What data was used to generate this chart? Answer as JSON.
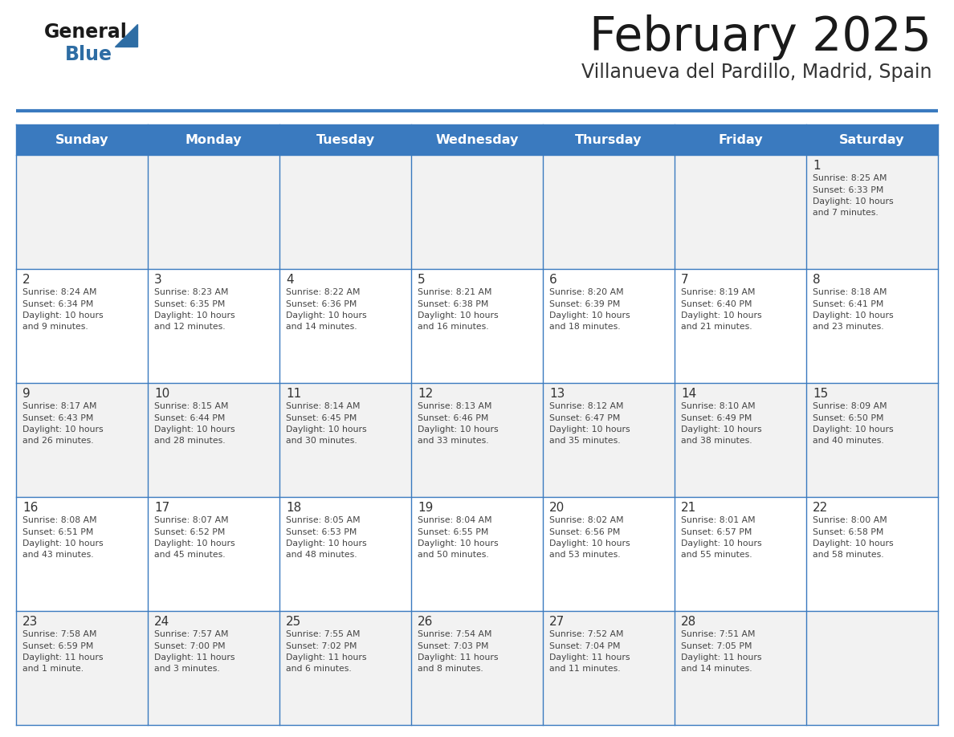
{
  "title": "February 2025",
  "subtitle": "Villanueva del Pardillo, Madrid, Spain",
  "days_of_week": [
    "Sunday",
    "Monday",
    "Tuesday",
    "Wednesday",
    "Thursday",
    "Friday",
    "Saturday"
  ],
  "header_bg": "#3a7abf",
  "header_text": "#ffffff",
  "row_bg_even": "#f2f2f2",
  "row_bg_odd": "#ffffff",
  "cell_text": "#444444",
  "day_num_color": "#333333",
  "border_color": "#3a7abf",
  "title_color": "#1a1a1a",
  "subtitle_color": "#333333",
  "general_color": "#1a1a1a",
  "blue_color": "#2e6da4",
  "triangle_color": "#2e6da4",
  "calendar_data": [
    [
      {
        "day": null
      },
      {
        "day": null
      },
      {
        "day": null
      },
      {
        "day": null
      },
      {
        "day": null
      },
      {
        "day": null
      },
      {
        "day": 1,
        "sunrise": "8:25 AM",
        "sunset": "6:33 PM",
        "daylight_line1": "10 hours",
        "daylight_line2": "and 7 minutes."
      }
    ],
    [
      {
        "day": 2,
        "sunrise": "8:24 AM",
        "sunset": "6:34 PM",
        "daylight_line1": "10 hours",
        "daylight_line2": "and 9 minutes."
      },
      {
        "day": 3,
        "sunrise": "8:23 AM",
        "sunset": "6:35 PM",
        "daylight_line1": "10 hours",
        "daylight_line2": "and 12 minutes."
      },
      {
        "day": 4,
        "sunrise": "8:22 AM",
        "sunset": "6:36 PM",
        "daylight_line1": "10 hours",
        "daylight_line2": "and 14 minutes."
      },
      {
        "day": 5,
        "sunrise": "8:21 AM",
        "sunset": "6:38 PM",
        "daylight_line1": "10 hours",
        "daylight_line2": "and 16 minutes."
      },
      {
        "day": 6,
        "sunrise": "8:20 AM",
        "sunset": "6:39 PM",
        "daylight_line1": "10 hours",
        "daylight_line2": "and 18 minutes."
      },
      {
        "day": 7,
        "sunrise": "8:19 AM",
        "sunset": "6:40 PM",
        "daylight_line1": "10 hours",
        "daylight_line2": "and 21 minutes."
      },
      {
        "day": 8,
        "sunrise": "8:18 AM",
        "sunset": "6:41 PM",
        "daylight_line1": "10 hours",
        "daylight_line2": "and 23 minutes."
      }
    ],
    [
      {
        "day": 9,
        "sunrise": "8:17 AM",
        "sunset": "6:43 PM",
        "daylight_line1": "10 hours",
        "daylight_line2": "and 26 minutes."
      },
      {
        "day": 10,
        "sunrise": "8:15 AM",
        "sunset": "6:44 PM",
        "daylight_line1": "10 hours",
        "daylight_line2": "and 28 minutes."
      },
      {
        "day": 11,
        "sunrise": "8:14 AM",
        "sunset": "6:45 PM",
        "daylight_line1": "10 hours",
        "daylight_line2": "and 30 minutes."
      },
      {
        "day": 12,
        "sunrise": "8:13 AM",
        "sunset": "6:46 PM",
        "daylight_line1": "10 hours",
        "daylight_line2": "and 33 minutes."
      },
      {
        "day": 13,
        "sunrise": "8:12 AM",
        "sunset": "6:47 PM",
        "daylight_line1": "10 hours",
        "daylight_line2": "and 35 minutes."
      },
      {
        "day": 14,
        "sunrise": "8:10 AM",
        "sunset": "6:49 PM",
        "daylight_line1": "10 hours",
        "daylight_line2": "and 38 minutes."
      },
      {
        "day": 15,
        "sunrise": "8:09 AM",
        "sunset": "6:50 PM",
        "daylight_line1": "10 hours",
        "daylight_line2": "and 40 minutes."
      }
    ],
    [
      {
        "day": 16,
        "sunrise": "8:08 AM",
        "sunset": "6:51 PM",
        "daylight_line1": "10 hours",
        "daylight_line2": "and 43 minutes."
      },
      {
        "day": 17,
        "sunrise": "8:07 AM",
        "sunset": "6:52 PM",
        "daylight_line1": "10 hours",
        "daylight_line2": "and 45 minutes."
      },
      {
        "day": 18,
        "sunrise": "8:05 AM",
        "sunset": "6:53 PM",
        "daylight_line1": "10 hours",
        "daylight_line2": "and 48 minutes."
      },
      {
        "day": 19,
        "sunrise": "8:04 AM",
        "sunset": "6:55 PM",
        "daylight_line1": "10 hours",
        "daylight_line2": "and 50 minutes."
      },
      {
        "day": 20,
        "sunrise": "8:02 AM",
        "sunset": "6:56 PM",
        "daylight_line1": "10 hours",
        "daylight_line2": "and 53 minutes."
      },
      {
        "day": 21,
        "sunrise": "8:01 AM",
        "sunset": "6:57 PM",
        "daylight_line1": "10 hours",
        "daylight_line2": "and 55 minutes."
      },
      {
        "day": 22,
        "sunrise": "8:00 AM",
        "sunset": "6:58 PM",
        "daylight_line1": "10 hours",
        "daylight_line2": "and 58 minutes."
      }
    ],
    [
      {
        "day": 23,
        "sunrise": "7:58 AM",
        "sunset": "6:59 PM",
        "daylight_line1": "11 hours",
        "daylight_line2": "and 1 minute."
      },
      {
        "day": 24,
        "sunrise": "7:57 AM",
        "sunset": "7:00 PM",
        "daylight_line1": "11 hours",
        "daylight_line2": "and 3 minutes."
      },
      {
        "day": 25,
        "sunrise": "7:55 AM",
        "sunset": "7:02 PM",
        "daylight_line1": "11 hours",
        "daylight_line2": "and 6 minutes."
      },
      {
        "day": 26,
        "sunrise": "7:54 AM",
        "sunset": "7:03 PM",
        "daylight_line1": "11 hours",
        "daylight_line2": "and 8 minutes."
      },
      {
        "day": 27,
        "sunrise": "7:52 AM",
        "sunset": "7:04 PM",
        "daylight_line1": "11 hours",
        "daylight_line2": "and 11 minutes."
      },
      {
        "day": 28,
        "sunrise": "7:51 AM",
        "sunset": "7:05 PM",
        "daylight_line1": "11 hours",
        "daylight_line2": "and 14 minutes."
      },
      {
        "day": null
      }
    ]
  ]
}
